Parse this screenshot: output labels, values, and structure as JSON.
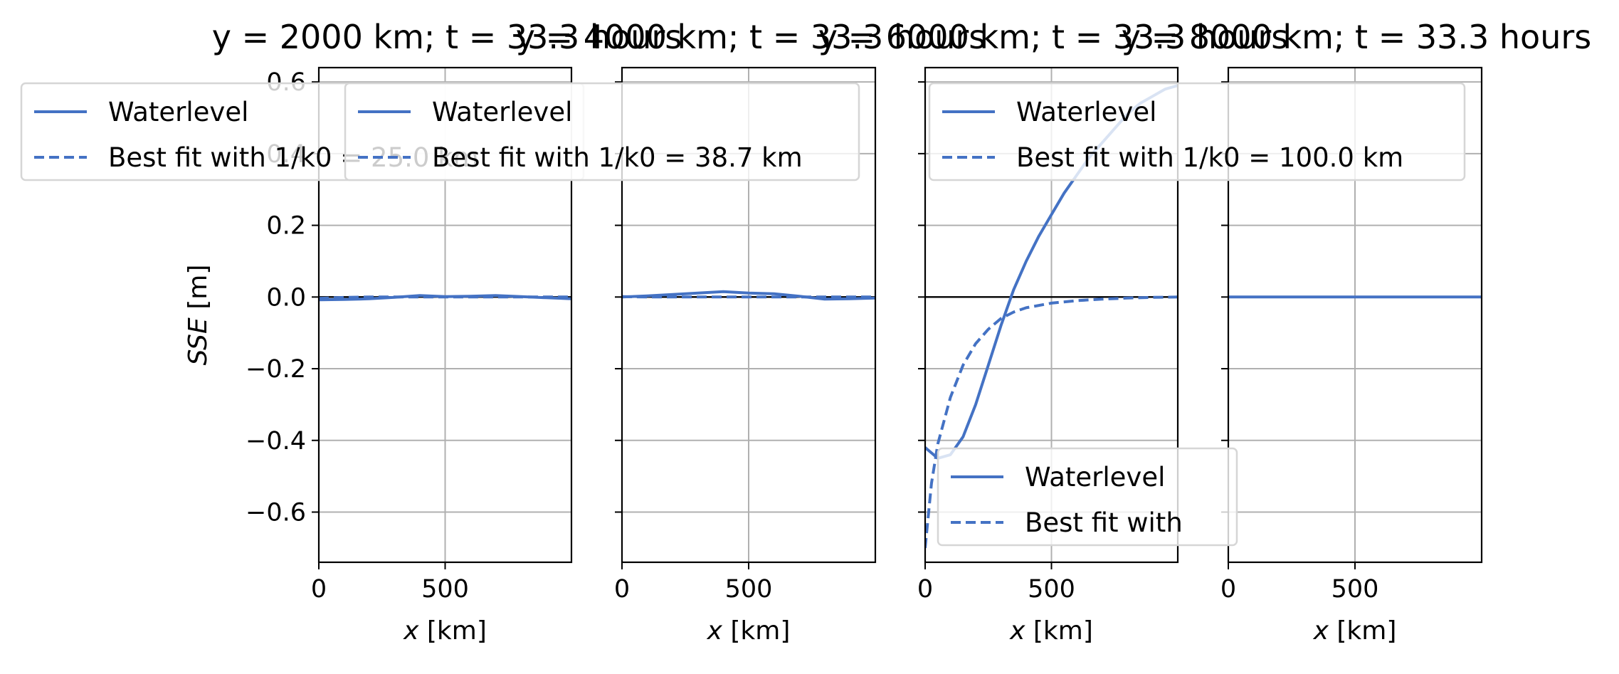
{
  "colors": {
    "series": "#4472c4",
    "grid": "#b0b0b0",
    "axis": "#000000"
  },
  "chart_data": [
    {
      "type": "line",
      "title": "y = 2000 km; t = 33.3 hours",
      "xlabel": "x [km]",
      "ylabel": "SSE [m]",
      "xlim": [
        0,
        1000
      ],
      "ylim": [
        -0.74,
        0.64
      ],
      "xticks": [
        "0",
        "500"
      ],
      "yticks": [
        "0.6",
        "0.4",
        "0.2",
        "0.0",
        "−0.2",
        "−0.4",
        "−0.6"
      ],
      "grid": true,
      "legend": {
        "placement": "top-left",
        "entries": [
          "Waterlevel",
          "Best fit with 1/k0 = 25.0 km"
        ]
      },
      "series": [
        {
          "name": "Waterlevel",
          "style": "solid",
          "x": [
            0,
            100,
            200,
            300,
            400,
            500,
            600,
            700,
            800,
            900,
            1000
          ],
          "y": [
            -0.008,
            -0.007,
            -0.005,
            -0.001,
            0.004,
            0.001,
            0.002,
            0.004,
            0.001,
            -0.002,
            -0.005
          ]
        },
        {
          "name": "Best fit with 1/k0 = 25.0 km",
          "style": "dashed",
          "x": [
            0,
            100,
            200,
            300,
            400,
            500,
            600,
            700,
            800,
            900,
            1000
          ],
          "y": [
            -0.004,
            -0.001,
            0,
            0,
            0,
            0,
            0,
            0,
            0,
            0,
            0
          ]
        }
      ]
    },
    {
      "type": "line",
      "title": "y = 4000 km; t = 33.3 hours",
      "xlabel": "x [km]",
      "ylabel": "",
      "xlim": [
        0,
        1000
      ],
      "ylim": [
        -0.74,
        0.64
      ],
      "xticks": [
        "0",
        "500"
      ],
      "yticks": [],
      "grid": true,
      "legend": {
        "placement": "top",
        "entries": [
          "Waterlevel",
          "Best fit with 1/k0 = 38.7 km"
        ]
      },
      "series": [
        {
          "name": "Waterlevel",
          "style": "solid",
          "x": [
            0,
            100,
            200,
            300,
            400,
            500,
            600,
            700,
            800,
            900,
            1000
          ],
          "y": [
            0.0,
            0.003,
            0.007,
            0.011,
            0.015,
            0.011,
            0.009,
            0.002,
            -0.006,
            -0.005,
            -0.003
          ]
        },
        {
          "name": "Best fit with 1/k0 = 38.7 km",
          "style": "dashed",
          "x": [
            0,
            100,
            200,
            300,
            400,
            500,
            600,
            700,
            800,
            900,
            1000
          ],
          "y": [
            0.001,
            0.0,
            0,
            0,
            0,
            0,
            0,
            0,
            0,
            0,
            0
          ]
        }
      ]
    },
    {
      "type": "line",
      "title": "y = 6000 km; t = 33.3 hours",
      "xlabel": "x [km]",
      "ylabel": "",
      "xlim": [
        0,
        1000
      ],
      "ylim": [
        -0.74,
        0.64
      ],
      "xticks": [
        "0",
        "500"
      ],
      "yticks": [],
      "grid": true,
      "legend": {
        "placement": "top",
        "entries": [
          "Waterlevel",
          "Best fit with 1/k0 = 100.0 km"
        ]
      },
      "legend2": {
        "placement": "bottom-left",
        "entries": [
          "Waterlevel",
          "Best fit with"
        ]
      },
      "series": [
        {
          "name": "Waterlevel",
          "style": "solid",
          "x": [
            0,
            50,
            100,
            150,
            200,
            250,
            300,
            350,
            400,
            450,
            500,
            550,
            600,
            650,
            700,
            750,
            800,
            850,
            900,
            950,
            1000
          ],
          "y": [
            -0.42,
            -0.45,
            -0.44,
            -0.39,
            -0.3,
            -0.19,
            -0.08,
            0.02,
            0.1,
            0.17,
            0.23,
            0.29,
            0.34,
            0.39,
            0.43,
            0.47,
            0.51,
            0.54,
            0.56,
            0.58,
            0.59
          ]
        },
        {
          "name": "Best fit with 1/k0 = 100.0 km",
          "style": "dashed",
          "x": [
            0,
            25,
            50,
            100,
            150,
            200,
            250,
            300,
            350,
            400,
            500,
            600,
            700,
            800,
            900,
            1000
          ],
          "y": [
            -0.7,
            -0.52,
            -0.41,
            -0.28,
            -0.19,
            -0.13,
            -0.09,
            -0.06,
            -0.042,
            -0.03,
            -0.017,
            -0.01,
            -0.006,
            -0.003,
            -0.001,
            0.0
          ]
        }
      ]
    },
    {
      "type": "line",
      "title": "y = 8000 km; t = 33.3 hours",
      "xlabel": "x [km]",
      "ylabel": "",
      "xlim": [
        0,
        1000
      ],
      "ylim": [
        -0.74,
        0.64
      ],
      "xticks": [
        "0",
        "500"
      ],
      "yticks": [],
      "grid": true,
      "series": [
        {
          "name": "Waterlevel",
          "style": "solid",
          "x": [
            0,
            1000
          ],
          "y": [
            0.0,
            0.0
          ]
        }
      ]
    }
  ]
}
